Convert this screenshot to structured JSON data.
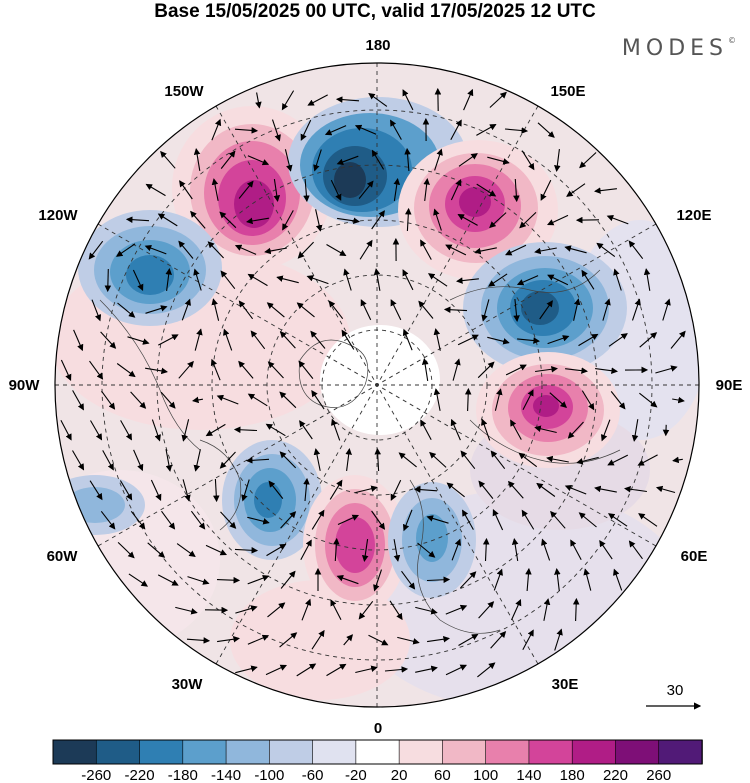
{
  "title": "Base 15/05/2025 00 UTC, valid 17/05/2025 12 UTC",
  "brand": "MODES",
  "brand_mark": "©",
  "longitude_labels": {
    "top": "180",
    "bottom": "0",
    "left": "90W",
    "right": "90E",
    "upper_left": "150W",
    "upper_right": "150E",
    "mid_left": "120W",
    "mid_right": "120E",
    "lower_left": "60W",
    "lower_right": "60E",
    "bottom_left": "30W",
    "bottom_right": "30E"
  },
  "reference_vector": {
    "label": "30"
  },
  "colorbar": {
    "labels": [
      "-260",
      "-220",
      "-180",
      "-140",
      "-100",
      "-60",
      "-20",
      "20",
      "60",
      "100",
      "140",
      "180",
      "220",
      "260"
    ],
    "colors": [
      "#1c3a57",
      "#1f5c87",
      "#2f7fb3",
      "#5c9fcc",
      "#90b7dc",
      "#bfcde6",
      "#e0e2f0",
      "#ffffff",
      "#f7dde0",
      "#f1b8c6",
      "#e880ac",
      "#d3449a",
      "#b01d86",
      "#7e0f77",
      "#511a77"
    ]
  },
  "anomaly_cells": [
    {
      "lon_label": "150W",
      "sign": "positive",
      "level": 220
    },
    {
      "lon_label": "180",
      "sign": "negative",
      "level": -260
    },
    {
      "lon_label": "150E",
      "sign": "positive",
      "level": 220
    },
    {
      "lon_label": "120W",
      "sign": "negative",
      "level": -180
    },
    {
      "lon_label": "120E",
      "sign": "negative",
      "level": -220
    },
    {
      "lon_label": "90E",
      "sign": "positive",
      "level": 220
    },
    {
      "lon_label": "60W",
      "sign": "negative",
      "level": -180
    },
    {
      "lon_label": "0",
      "sign": "positive",
      "level": 220
    },
    {
      "lon_label": "30E",
      "sign": "negative",
      "level": -140
    }
  ]
}
